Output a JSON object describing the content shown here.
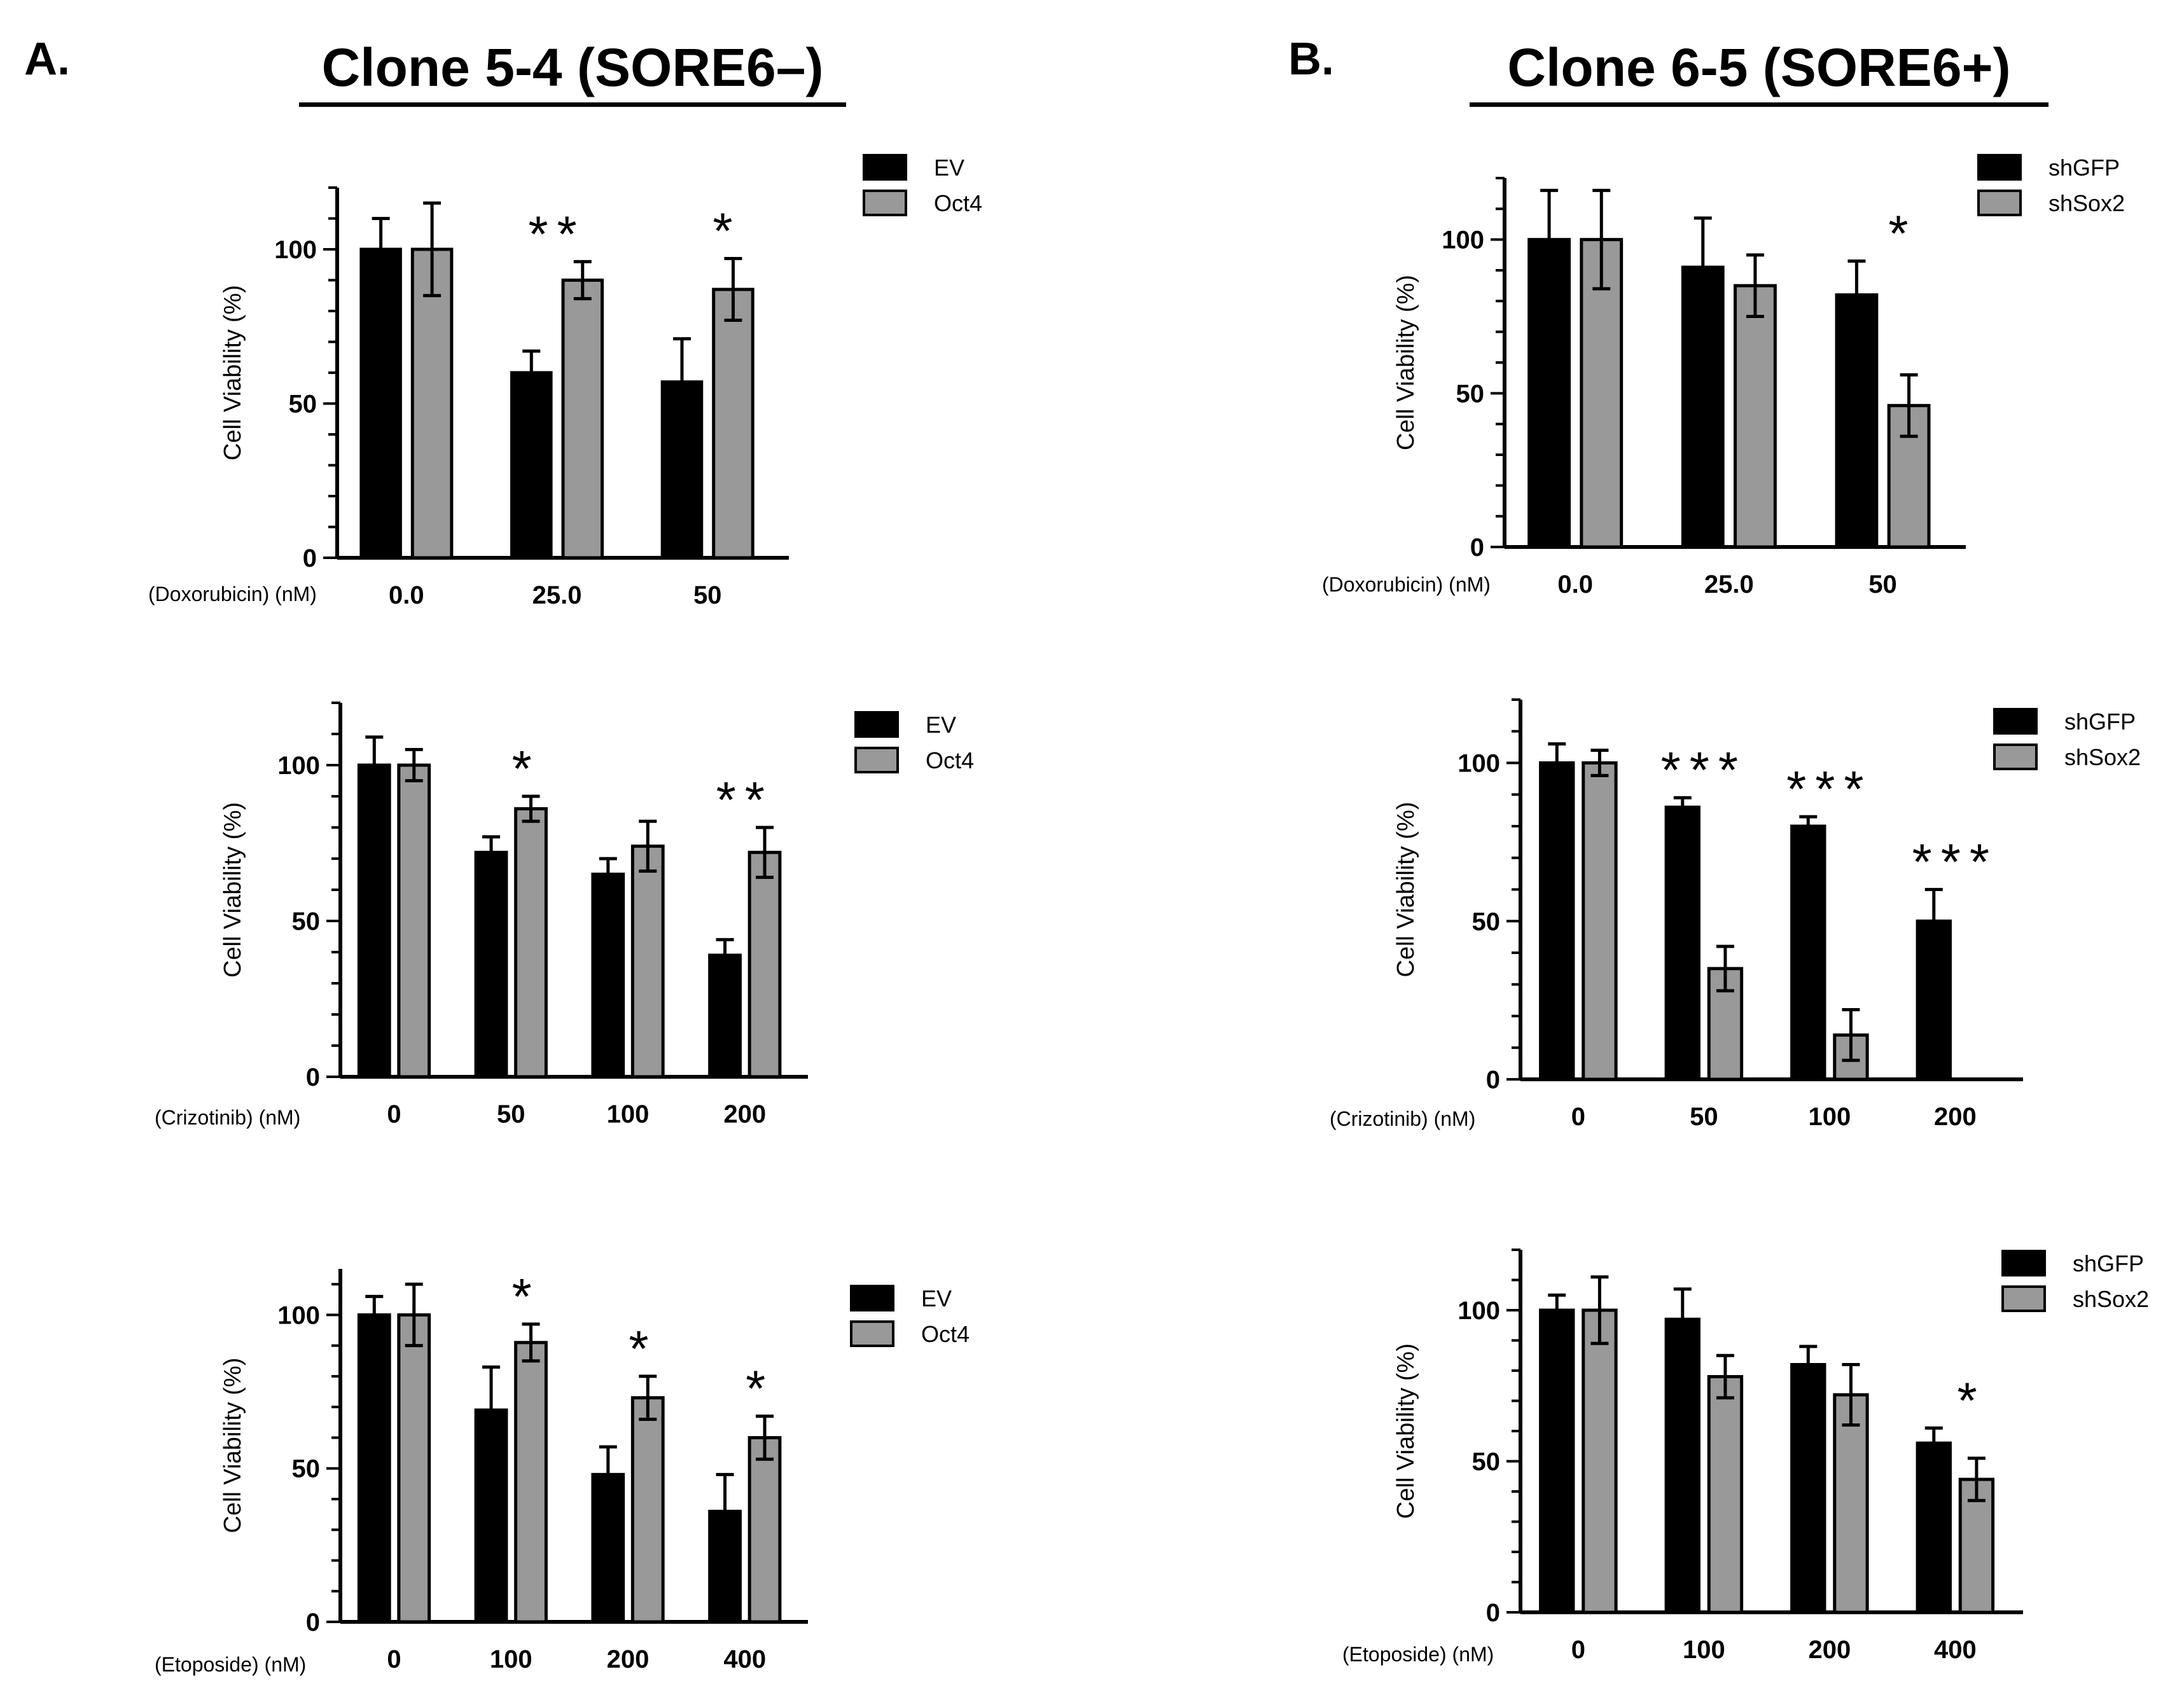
{
  "panels": {
    "a": {
      "letter": "A.",
      "title": "Clone 5-4 (SORE6–)"
    },
    "b": {
      "letter": "B.",
      "title": "Clone 6-5 (SORE6+)"
    }
  },
  "colors": {
    "series_dark": "#000000",
    "series_light": "#999999",
    "axis": "#000000"
  },
  "chart_data": [
    {
      "id": "a-doxorubicin",
      "type": "bar",
      "title": "",
      "xlabel": "(Doxorubicin) (nM)",
      "ylabel": "Cell Viability (%)",
      "ylim": [
        0,
        120
      ],
      "yticks": [
        0,
        50,
        100
      ],
      "categories": [
        "0.0",
        "25.0",
        "50"
      ],
      "series": [
        {
          "name": "EV",
          "values": [
            100,
            60,
            57
          ],
          "errors": [
            10,
            7,
            14
          ]
        },
        {
          "name": "Oct4",
          "values": [
            100,
            90,
            87
          ],
          "errors": [
            15,
            6,
            10
          ]
        }
      ],
      "annotations": [
        "",
        "**",
        "*"
      ],
      "legend": "top-right"
    },
    {
      "id": "a-crizotinib",
      "type": "bar",
      "title": "",
      "xlabel": "(Crizotinib) (nM)",
      "ylabel": "Cell Viability (%)",
      "ylim": [
        0,
        120
      ],
      "yticks": [
        0,
        50,
        100
      ],
      "categories": [
        "0",
        "50",
        "100",
        "200"
      ],
      "series": [
        {
          "name": "EV",
          "values": [
            100,
            72,
            65,
            39
          ],
          "errors": [
            9,
            5,
            5,
            5
          ]
        },
        {
          "name": "Oct4",
          "values": [
            100,
            86,
            74,
            72
          ],
          "errors": [
            5,
            4,
            8,
            8
          ]
        }
      ],
      "annotations": [
        "",
        "*",
        "",
        "**"
      ],
      "legend": "top-right"
    },
    {
      "id": "a-etoposide",
      "type": "bar",
      "title": "",
      "xlabel": "(Etoposide) (nM)",
      "ylabel": "Cell Viability (%)",
      "ylim": [
        0,
        115
      ],
      "yticks": [
        0,
        50,
        100
      ],
      "categories": [
        "0",
        "100",
        "200",
        "400"
      ],
      "series": [
        {
          "name": "EV",
          "values": [
            100,
            69,
            48,
            36
          ],
          "errors": [
            6,
            14,
            9,
            12
          ]
        },
        {
          "name": "Oct4",
          "values": [
            100,
            91,
            73,
            60
          ],
          "errors": [
            10,
            6,
            7,
            7
          ]
        }
      ],
      "annotations": [
        "",
        "*",
        "*",
        "*"
      ],
      "legend": "top-right"
    },
    {
      "id": "b-doxorubicin",
      "type": "bar",
      "title": "",
      "xlabel": "(Doxorubicin) (nM)",
      "ylabel": "Cell Viability (%)",
      "ylim": [
        0,
        120
      ],
      "yticks": [
        0,
        50,
        100
      ],
      "categories": [
        "0.0",
        "25.0",
        "50"
      ],
      "series": [
        {
          "name": "shGFP",
          "values": [
            100,
            91,
            82
          ],
          "errors": [
            16,
            16,
            11
          ]
        },
        {
          "name": "shSox2",
          "values": [
            100,
            85,
            46
          ],
          "errors": [
            16,
            10,
            10
          ]
        }
      ],
      "annotations": [
        "",
        "",
        "*"
      ],
      "legend": "top-right"
    },
    {
      "id": "b-crizotinib",
      "type": "bar",
      "title": "",
      "xlabel": "(Crizotinib) (nM)",
      "ylabel": "Cell Viability (%)",
      "ylim": [
        0,
        120
      ],
      "yticks": [
        0,
        50,
        100
      ],
      "categories": [
        "0",
        "50",
        "100",
        "200"
      ],
      "series": [
        {
          "name": "shGFP",
          "values": [
            100,
            86,
            80,
            50
          ],
          "errors": [
            6,
            3,
            3,
            10
          ]
        },
        {
          "name": "shSox2",
          "values": [
            100,
            35,
            14,
            0
          ],
          "errors": [
            4,
            7,
            8,
            0
          ]
        }
      ],
      "annotations": [
        "",
        "***",
        "***",
        "***"
      ],
      "legend": "top-right"
    },
    {
      "id": "b-etoposide",
      "type": "bar",
      "title": "",
      "xlabel": "(Etoposide) (nM)",
      "ylabel": "Cell Viability (%)",
      "ylim": [
        0,
        120
      ],
      "yticks": [
        0,
        50,
        100
      ],
      "categories": [
        "0",
        "100",
        "200",
        "400"
      ],
      "series": [
        {
          "name": "shGFP",
          "values": [
            100,
            97,
            82,
            56
          ],
          "errors": [
            5,
            10,
            6,
            5
          ]
        },
        {
          "name": "shSox2",
          "values": [
            100,
            78,
            72,
            44
          ],
          "errors": [
            11,
            7,
            10,
            7
          ]
        }
      ],
      "annotations": [
        "",
        "",
        "",
        "*"
      ],
      "legend": "top-right"
    }
  ]
}
